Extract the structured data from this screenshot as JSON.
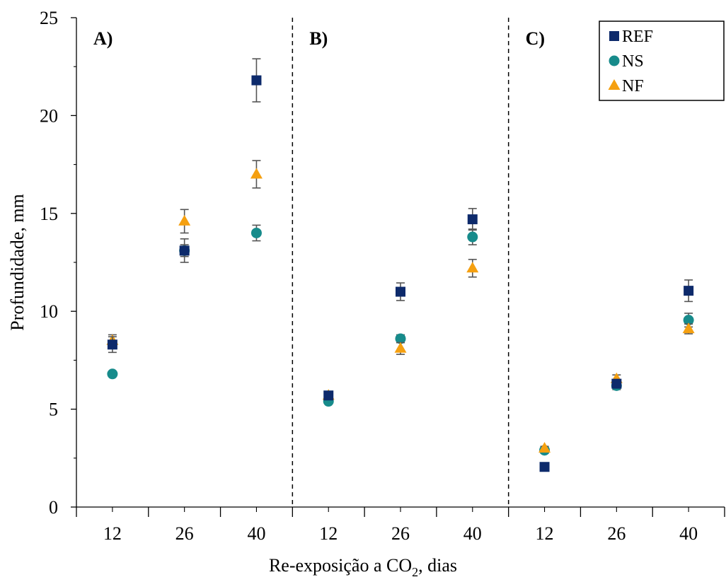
{
  "chart_data": {
    "type": "scatter",
    "ylabel": "Profundidade, mm",
    "xlabel_parts": {
      "main": "Re-exposição a CO",
      "sub": "2",
      "tail": ", dias"
    },
    "ylim": [
      0,
      25
    ],
    "yticks": [
      0,
      5,
      10,
      15,
      20,
      25
    ],
    "legend_position": "top-right",
    "grid": false,
    "colors": {
      "REF": "#0d2a6b",
      "NS": "#178b8b",
      "NF": "#f5a010"
    },
    "series": [
      {
        "name": "REF",
        "marker": "square"
      },
      {
        "name": "NS",
        "marker": "circle"
      },
      {
        "name": "NF",
        "marker": "triangle"
      }
    ],
    "panels": [
      {
        "label": "A)",
        "categories": [
          "12",
          "26",
          "40"
        ],
        "REF": {
          "values": [
            8.3,
            13.1,
            21.8
          ],
          "errors": [
            0.4,
            0.6,
            1.1
          ]
        },
        "NS": {
          "values": [
            6.8,
            13.1,
            14.0
          ],
          "errors": [
            0.1,
            0.3,
            0.4
          ]
        },
        "NF": {
          "values": [
            8.5,
            14.6,
            17.0
          ],
          "errors": [
            0.3,
            0.6,
            0.7
          ]
        }
      },
      {
        "label": "B)",
        "categories": [
          "12",
          "26",
          "40"
        ],
        "REF": {
          "values": [
            5.7,
            11.0,
            14.7
          ],
          "errors": [
            0.2,
            0.45,
            0.55
          ]
        },
        "NS": {
          "values": [
            5.4,
            8.6,
            13.8
          ],
          "errors": [
            0.1,
            0.2,
            0.4
          ]
        },
        "NF": {
          "values": [
            5.7,
            8.1,
            12.2
          ],
          "errors": [
            0.15,
            0.3,
            0.45
          ]
        }
      },
      {
        "label": "C)",
        "categories": [
          "12",
          "26",
          "40"
        ],
        "REF": {
          "values": [
            2.05,
            6.3,
            11.05
          ],
          "errors": [
            0.05,
            0.2,
            0.55
          ]
        },
        "NS": {
          "values": [
            2.9,
            6.2,
            9.55
          ],
          "errors": [
            0.15,
            0.2,
            0.35
          ]
        },
        "NF": {
          "values": [
            3.0,
            6.55,
            9.1
          ],
          "errors": [
            0.1,
            0.2,
            0.25
          ]
        }
      }
    ]
  }
}
